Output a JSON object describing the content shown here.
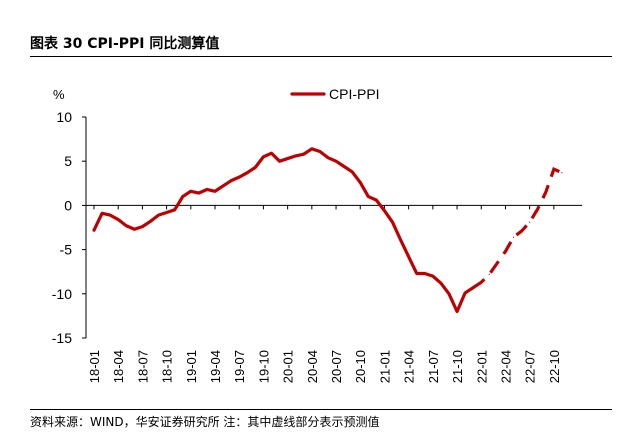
{
  "figure": {
    "title": "图表 30 CPI-PPI 同比测算值",
    "source": "资料来源：WIND，华安证券研究所 注：其中虚线部分表示预测值"
  },
  "chart_data": {
    "type": "line",
    "ylabel": "%",
    "ylim": [
      -15,
      10
    ],
    "yticks": [
      10,
      5,
      0,
      -5,
      -10,
      -15
    ],
    "ytick_labels": [
      "10",
      "5",
      "0",
      "-5",
      "-10",
      "-15"
    ],
    "x": [
      "18-01",
      "18-02",
      "18-03",
      "18-04",
      "18-05",
      "18-06",
      "18-07",
      "18-08",
      "18-09",
      "18-10",
      "18-11",
      "18-12",
      "19-01",
      "19-02",
      "19-03",
      "19-04",
      "19-05",
      "19-06",
      "19-07",
      "19-08",
      "19-09",
      "19-10",
      "19-11",
      "19-12",
      "20-01",
      "20-02",
      "20-03",
      "20-04",
      "20-05",
      "20-06",
      "20-07",
      "20-08",
      "20-09",
      "20-10",
      "20-11",
      "20-12",
      "21-01",
      "21-02",
      "21-03",
      "21-04",
      "21-05",
      "21-06",
      "21-07",
      "21-08",
      "21-09",
      "21-10",
      "21-11",
      "21-12",
      "22-01",
      "22-02",
      "22-03",
      "22-04",
      "22-05",
      "22-06",
      "22-07",
      "22-08",
      "22-09",
      "22-10",
      "22-11",
      "22-12"
    ],
    "xtick_labels": [
      "18-01",
      "18-04",
      "18-07",
      "18-10",
      "19-01",
      "19-04",
      "19-07",
      "19-10",
      "20-01",
      "20-04",
      "20-07",
      "20-10",
      "21-01",
      "21-04",
      "21-07",
      "21-10",
      "22-01",
      "22-04",
      "22-07",
      "22-10"
    ],
    "series": [
      {
        "name": "CPI-PPI",
        "color": "#c00000",
        "values": [
          -2.8,
          -0.9,
          -1.1,
          -1.6,
          -2.3,
          -2.7,
          -2.4,
          -1.8,
          -1.1,
          -0.8,
          -0.5,
          1.0,
          1.6,
          1.4,
          1.8,
          1.6,
          2.2,
          2.8,
          3.2,
          3.7,
          4.3,
          5.5,
          5.9,
          5.0,
          5.3,
          5.6,
          5.8,
          6.4,
          6.1,
          5.4,
          5.0,
          4.4,
          3.8,
          2.6,
          1.0,
          0.6,
          -0.6,
          -1.9,
          -3.9,
          -5.8,
          -7.7,
          -7.7,
          -8.0,
          -8.8,
          -10.0,
          -12.0,
          -9.9,
          -9.3,
          -8.7,
          -7.8,
          -6.5,
          -5.2,
          -3.6,
          -2.9,
          -1.9,
          -0.4,
          1.5,
          4.1,
          3.7,
          null
        ]
      }
    ],
    "solid_until": "21-12",
    "forecast_from": "21-12",
    "legend_position": "top-center"
  }
}
